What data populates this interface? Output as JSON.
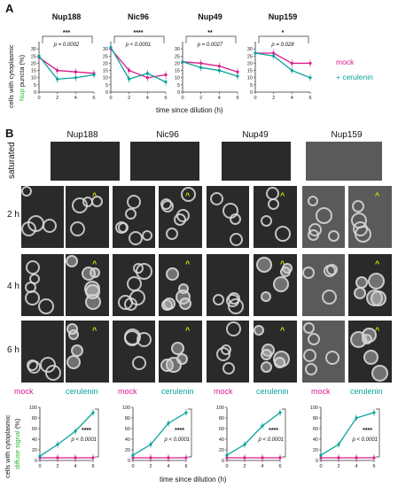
{
  "panelA": {
    "letter": "A",
    "ylabel_line1": "cells with cytoplasmic",
    "ylabel_nup": "Nup",
    "ylabel_line2": " puncta (%)",
    "xlabel": "time since dilution (h)",
    "legend": {
      "mock": "mock",
      "cerulenin": "+ cerulenin"
    },
    "colors": {
      "mock": "#d81b8c",
      "cerulenin": "#0aa39a",
      "nup_label": "#2eb82e"
    }
  },
  "panelB": {
    "letter": "B",
    "columns": [
      "Nup188",
      "Nic96",
      "Nup49",
      "Nup159"
    ],
    "rows": [
      "saturated",
      "2 h",
      "4 h",
      "6 h"
    ],
    "mock_label": "mock",
    "cerulenin_label": "cerulenin",
    "ylabel_line1": "cells with cytoplasmic",
    "ylabel_colored": "diffuse signal",
    "ylabel_line2": " (%)",
    "xlabel": "time since dilution (h)",
    "arrow_glyph": "^"
  },
  "chart_data": [
    {
      "type": "line",
      "title": "Nup188",
      "x": [
        0,
        2,
        4,
        6
      ],
      "ylim": [
        0,
        35
      ],
      "yticks": [
        0,
        5,
        10,
        15,
        20,
        25,
        30
      ],
      "xticks": [
        0,
        2,
        4,
        6
      ],
      "sig": "***",
      "pval": "p = 0.0002",
      "series": [
        {
          "name": "mock",
          "values": [
            24,
            15,
            14,
            13
          ]
        },
        {
          "name": "+ cerulenin",
          "values": [
            25,
            9,
            10,
            12
          ]
        }
      ]
    },
    {
      "type": "line",
      "title": "Nic96",
      "x": [
        0,
        2,
        4,
        6
      ],
      "ylim": [
        0,
        35
      ],
      "yticks": [
        0,
        5,
        10,
        15,
        20,
        25,
        30
      ],
      "xticks": [
        0,
        2,
        4,
        6
      ],
      "sig": "****",
      "pval": "p < 0.0001",
      "series": [
        {
          "name": "mock",
          "values": [
            30,
            15,
            10,
            12
          ]
        },
        {
          "name": "+ cerulenin",
          "values": [
            31,
            9,
            13,
            7
          ]
        }
      ]
    },
    {
      "type": "line",
      "title": "Nup49",
      "x": [
        0,
        2,
        4,
        6
      ],
      "ylim": [
        0,
        35
      ],
      "yticks": [
        0,
        5,
        10,
        15,
        20,
        25,
        30
      ],
      "xticks": [
        0,
        2,
        4,
        6
      ],
      "sig": "**",
      "pval": "p = 0.0027",
      "series": [
        {
          "name": "mock",
          "values": [
            21,
            20,
            18,
            14
          ]
        },
        {
          "name": "+ cerulenin",
          "values": [
            21,
            17,
            15,
            11
          ]
        }
      ]
    },
    {
      "type": "line",
      "title": "Nup159",
      "x": [
        0,
        2,
        4,
        6
      ],
      "ylim": [
        0,
        35
      ],
      "yticks": [
        0,
        5,
        10,
        15,
        20,
        25,
        30
      ],
      "xticks": [
        0,
        2,
        4,
        6
      ],
      "sig": "*",
      "pval": "p = 0.028",
      "series": [
        {
          "name": "mock",
          "values": [
            27,
            27,
            20,
            20
          ]
        },
        {
          "name": "+ cerulenin",
          "values": [
            27,
            25,
            15,
            10
          ]
        }
      ]
    },
    {
      "type": "line",
      "title": "Nup188",
      "x": [
        0,
        2,
        4,
        6
      ],
      "ylim": [
        0,
        100
      ],
      "yticks": [
        0,
        20,
        40,
        60,
        80,
        100
      ],
      "xticks": [
        0,
        2,
        4,
        6
      ],
      "sig": "****",
      "pval": "p < 0.0001",
      "series": [
        {
          "name": "mock",
          "values": [
            5,
            5,
            5,
            5
          ]
        },
        {
          "name": "cerulenin",
          "values": [
            8,
            30,
            55,
            90
          ]
        }
      ]
    },
    {
      "type": "line",
      "title": "Nic96",
      "x": [
        0,
        2,
        4,
        6
      ],
      "ylim": [
        0,
        100
      ],
      "yticks": [
        0,
        20,
        40,
        60,
        80,
        100
      ],
      "xticks": [
        0,
        2,
        4,
        6
      ],
      "sig": "****",
      "pval": "p < 0.0001",
      "series": [
        {
          "name": "mock",
          "values": [
            5,
            5,
            5,
            5
          ]
        },
        {
          "name": "cerulenin",
          "values": [
            10,
            30,
            70,
            90
          ]
        }
      ]
    },
    {
      "type": "line",
      "title": "Nup49",
      "x": [
        0,
        2,
        4,
        6
      ],
      "ylim": [
        0,
        100
      ],
      "yticks": [
        0,
        20,
        40,
        60,
        80,
        100
      ],
      "xticks": [
        0,
        2,
        4,
        6
      ],
      "sig": "****",
      "pval": "p < 0.0001",
      "series": [
        {
          "name": "mock",
          "values": [
            5,
            5,
            5,
            5
          ]
        },
        {
          "name": "cerulenin",
          "values": [
            10,
            30,
            65,
            90
          ]
        }
      ]
    },
    {
      "type": "line",
      "title": "Nup159",
      "x": [
        0,
        2,
        4,
        6
      ],
      "ylim": [
        0,
        100
      ],
      "yticks": [
        0,
        20,
        40,
        60,
        80,
        100
      ],
      "xticks": [
        0,
        2,
        4,
        6
      ],
      "sig": "****",
      "pval": "p < 0.0001",
      "series": [
        {
          "name": "mock",
          "values": [
            5,
            5,
            5,
            5
          ]
        },
        {
          "name": "cerulenin",
          "values": [
            10,
            30,
            80,
            90
          ]
        }
      ]
    }
  ]
}
